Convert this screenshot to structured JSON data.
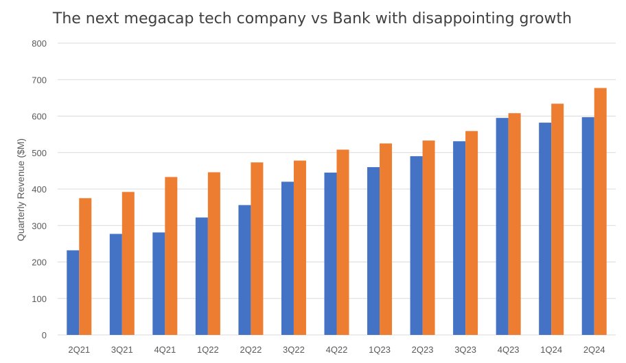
{
  "chart_data": {
    "type": "bar",
    "title": "The next megacap tech company vs Bank with disappointing growth",
    "xlabel": "",
    "ylabel": "Quarterly Revenue ($M)",
    "ylim": [
      0,
      800
    ],
    "yticks": [
      0,
      100,
      200,
      300,
      400,
      500,
      600,
      700,
      800
    ],
    "grid": true,
    "legend": "none",
    "categories": [
      "2Q21",
      "3Q21",
      "4Q21",
      "1Q22",
      "2Q22",
      "3Q22",
      "4Q22",
      "1Q23",
      "2Q23",
      "3Q23",
      "4Q23",
      "1Q24",
      "2Q24"
    ],
    "series": [
      {
        "color": "#4472c4",
        "values": [
          232,
          277,
          281,
          322,
          356,
          420,
          445,
          460,
          490,
          531,
          595,
          582,
          597
        ]
      },
      {
        "color": "#ed7d31",
        "values": [
          375,
          392,
          433,
          446,
          473,
          478,
          508,
          525,
          533,
          559,
          608,
          634,
          677
        ]
      }
    ]
  }
}
